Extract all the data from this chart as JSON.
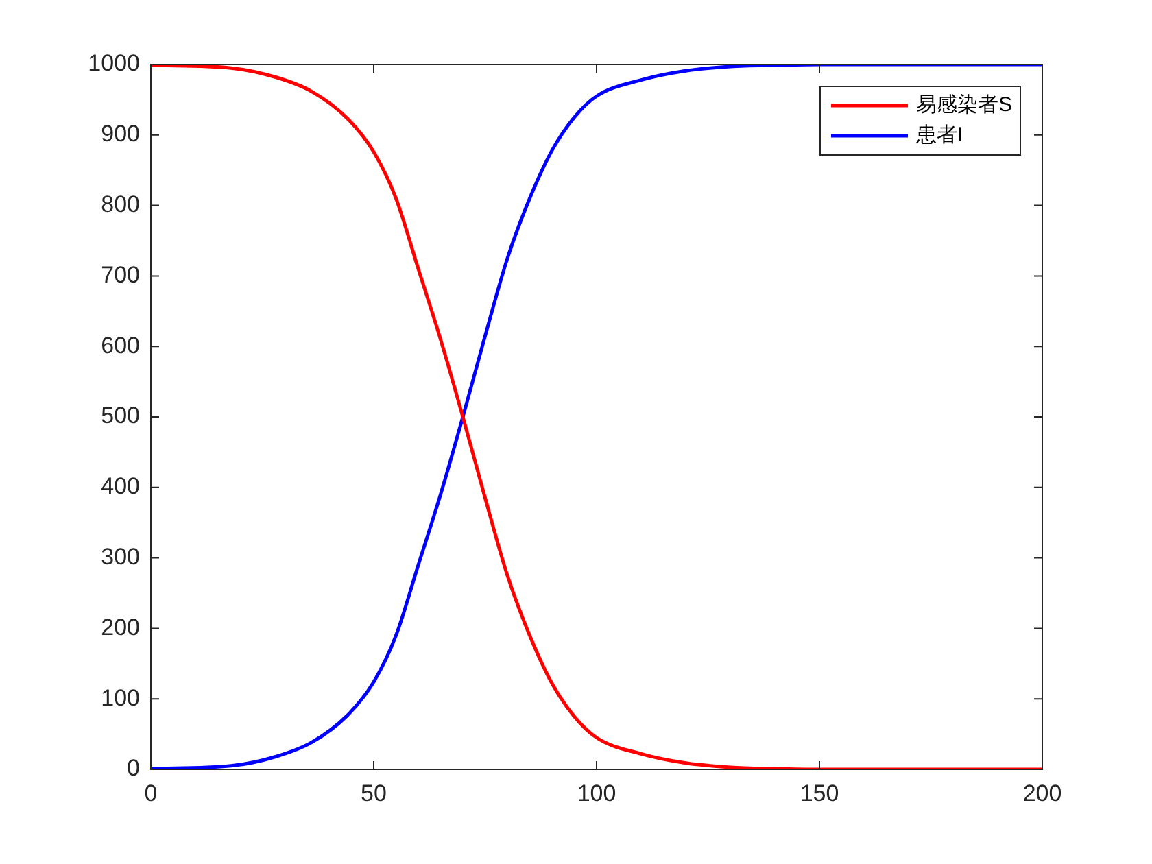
{
  "chart_data": {
    "type": "line",
    "x": [
      0,
      18,
      28,
      36,
      44,
      50,
      55,
      60,
      65,
      70,
      75,
      80,
      85,
      90,
      95,
      100,
      110,
      120,
      130,
      140,
      150,
      175,
      200
    ],
    "series": [
      {
        "name": "易感染者S",
        "color": "#ff0000",
        "values": [
          999,
          995,
          982,
          962,
          924,
          876,
          810,
          710,
          610,
          500,
          385,
          275,
          190,
          122,
          75,
          45,
          22,
          9,
          3,
          1,
          0,
          0,
          0
        ]
      },
      {
        "name": "患者I",
        "color": "#0000ff",
        "values": [
          1,
          5,
          18,
          38,
          76,
          124,
          190,
          290,
          390,
          500,
          615,
          725,
          810,
          878,
          925,
          955,
          978,
          991,
          997,
          999,
          1000,
          1000,
          1000
        ]
      }
    ],
    "xlim": [
      0,
      200
    ],
    "xticks": [
      0,
      50,
      100,
      150,
      200
    ],
    "ylim": [
      0,
      1000
    ],
    "yticks": [
      0,
      100,
      200,
      300,
      400,
      500,
      600,
      700,
      800,
      900,
      1000
    ],
    "legend": "top right",
    "grid": false,
    "marker": "none",
    "line_style": "solid"
  }
}
